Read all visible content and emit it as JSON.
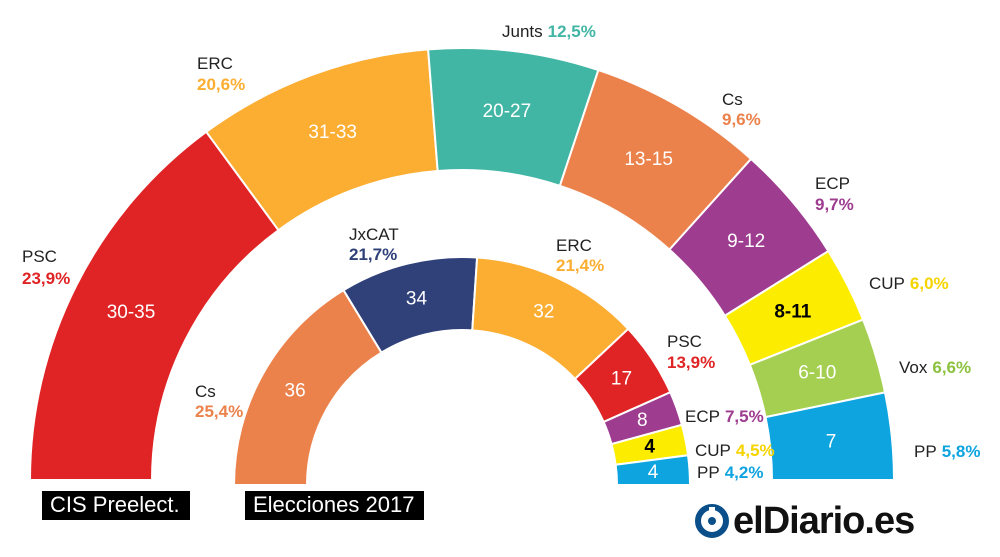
{
  "chart_data": [
    {
      "type": "pie",
      "series": [
        {
          "name": "PSC",
          "seats": "30-35",
          "pct": "23,9%",
          "color": "#e02425"
        },
        {
          "name": "ERC",
          "seats": "31-33",
          "pct": "20,6%",
          "color": "#fcae33"
        },
        {
          "name": "Junts",
          "seats": "20-27",
          "pct": "12,5%",
          "color": "#42b6a4"
        },
        {
          "name": "Cs",
          "seats": "13-15",
          "pct": "9,6%",
          "color": "#ec824b"
        },
        {
          "name": "ECP",
          "seats": "9-12",
          "pct": "9,7%",
          "color": "#9e3c90"
        },
        {
          "name": "CUP",
          "seats": "8-11",
          "pct": "6,0%",
          "color": "#fcec00"
        },
        {
          "name": "Vox",
          "seats": "6-10",
          "pct": "6,6%",
          "color": "#a5cf51"
        },
        {
          "name": "PP",
          "seats": "7",
          "pct": "5,8%",
          "color": "#0ea4e0"
        }
      ],
      "label": "CIS Preelect."
    },
    {
      "type": "pie",
      "series": [
        {
          "name": "Cs",
          "seats": "36",
          "pct": "25,4%",
          "color": "#ec824b"
        },
        {
          "name": "JxCAT",
          "seats": "34",
          "pct": "21,7%",
          "color": "#30417a"
        },
        {
          "name": "ERC",
          "seats": "32",
          "pct": "21,4%",
          "color": "#fcae33"
        },
        {
          "name": "PSC",
          "seats": "17",
          "pct": "13,9%",
          "color": "#e02425"
        },
        {
          "name": "ECP",
          "seats": "8",
          "pct": "7,5%",
          "color": "#9e3c90"
        },
        {
          "name": "CUP",
          "seats": "4",
          "pct": "4,5%",
          "color": "#fcec00"
        },
        {
          "name": "PP",
          "seats": "4",
          "pct": "4,2%",
          "color": "#0ea4e0"
        }
      ],
      "label": "Elecciones 2017"
    }
  ],
  "logo": {
    "text": "elDiario.es"
  }
}
